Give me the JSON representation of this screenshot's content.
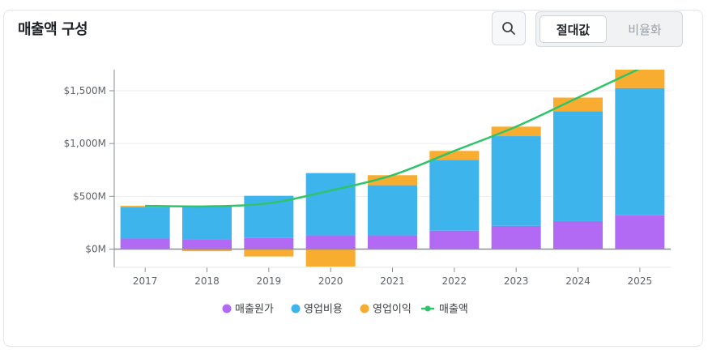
{
  "header": {
    "title": "매출액 구성",
    "search_icon": "search-icon",
    "toggle": {
      "options": [
        "절대값",
        "비율화"
      ],
      "selected": "절대값"
    }
  },
  "colors": {
    "cost_of_sales": "#b26af5",
    "operating_expenses": "#3db5ec",
    "operating_income": "#f8ac30",
    "revenue_line": "#2fc36a"
  },
  "chart_data": {
    "type": "bar",
    "stacked": true,
    "categories": [
      "2017",
      "2018",
      "2019",
      "2020",
      "2021",
      "2022",
      "2023",
      "2024",
      "2025"
    ],
    "series": [
      {
        "name": "매출원가",
        "type": "bar",
        "values": [
          100,
          95,
          105,
          130,
          130,
          175,
          220,
          265,
          320
        ]
      },
      {
        "name": "영업비용",
        "type": "bar",
        "values": [
          295,
          310,
          400,
          590,
          475,
          670,
          850,
          1040,
          1205
        ]
      },
      {
        "name": "영업이익",
        "type": "bar",
        "values": [
          15,
          -20,
          -70,
          -165,
          95,
          85,
          90,
          130,
          185
        ]
      },
      {
        "name": "매출액",
        "type": "line",
        "values": [
          410,
          405,
          435,
          555,
          700,
          930,
          1160,
          1435,
          1710
        ]
      }
    ],
    "y_ticks": [
      "$0M",
      "$500M",
      "$1,000M",
      "$1,500M"
    ],
    "y_tick_values": [
      0,
      500,
      1000,
      1500
    ],
    "ylim": [
      -175,
      1700
    ],
    "grid": true,
    "legend_position": "bottom"
  }
}
